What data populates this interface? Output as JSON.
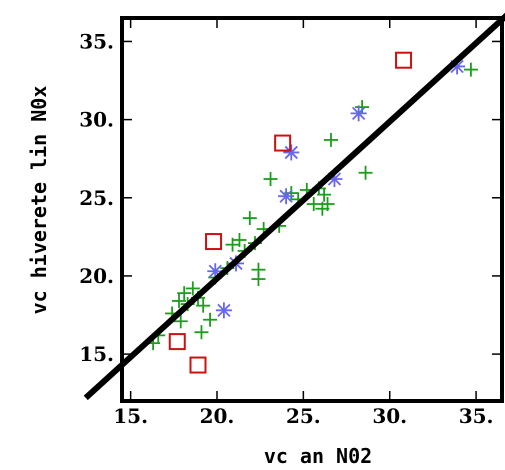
{
  "chart_data": {
    "type": "scatter",
    "title": "",
    "xlabel": "vc an N02",
    "ylabel": "vc hiverete lin N0x",
    "xlim": [
      14.5,
      36.5
    ],
    "ylim": [
      12,
      36.5
    ],
    "xticks": [
      15,
      20,
      25,
      30,
      35
    ],
    "yticks": [
      15,
      20,
      25,
      30,
      35
    ],
    "xtick_labels": [
      "15.",
      "20.",
      "25.",
      "30.",
      "35."
    ],
    "ytick_labels": [
      "15.",
      "20.",
      "25.",
      "30.",
      "35."
    ],
    "grid": false,
    "legend": "none",
    "series": [
      {
        "marker": "plus",
        "color": "#1a9e1a",
        "points": [
          [
            16.3,
            15.7
          ],
          [
            16.6,
            16.2
          ],
          [
            17.4,
            17.6
          ],
          [
            17.8,
            18.4
          ],
          [
            17.9,
            17.1
          ],
          [
            18.1,
            18.9
          ],
          [
            18.3,
            18.2
          ],
          [
            18.6,
            19.2
          ],
          [
            18.9,
            18.6
          ],
          [
            19.1,
            16.4
          ],
          [
            19.2,
            18.1
          ],
          [
            19.6,
            17.2
          ],
          [
            19.9,
            19.9
          ],
          [
            20.6,
            20.5
          ],
          [
            20.9,
            22.0
          ],
          [
            21.3,
            22.3
          ],
          [
            21.6,
            21.6
          ],
          [
            21.9,
            23.7
          ],
          [
            22.2,
            22.1
          ],
          [
            22.4,
            20.4
          ],
          [
            22.4,
            19.8
          ],
          [
            22.7,
            23.0
          ],
          [
            23.1,
            26.2
          ],
          [
            23.6,
            23.2
          ],
          [
            24.3,
            25.3
          ],
          [
            24.7,
            24.9
          ],
          [
            25.2,
            25.5
          ],
          [
            25.6,
            24.6
          ],
          [
            25.9,
            25.6
          ],
          [
            26.1,
            24.3
          ],
          [
            26.2,
            25.2
          ],
          [
            26.4,
            24.6
          ],
          [
            26.6,
            28.7
          ],
          [
            28.6,
            26.6
          ],
          [
            28.4,
            30.8
          ],
          [
            34.7,
            33.2
          ]
        ]
      },
      {
        "marker": "asterisk",
        "color": "#6666ee",
        "points": [
          [
            19.9,
            20.3
          ],
          [
            20.4,
            17.8
          ],
          [
            21.1,
            20.8
          ],
          [
            24.0,
            25.1
          ],
          [
            24.3,
            27.9
          ],
          [
            26.8,
            26.2
          ],
          [
            28.2,
            30.4
          ],
          [
            33.9,
            33.4
          ]
        ]
      },
      {
        "marker": "square",
        "color": "#cc1111",
        "points": [
          [
            17.7,
            15.8
          ],
          [
            18.9,
            14.3
          ],
          [
            19.8,
            22.2
          ],
          [
            23.8,
            28.5
          ],
          [
            30.8,
            33.8
          ]
        ]
      }
    ],
    "regression_line": {
      "x": [
        12.4,
        36.9
      ],
      "y": [
        12.2,
        36.8
      ]
    }
  }
}
